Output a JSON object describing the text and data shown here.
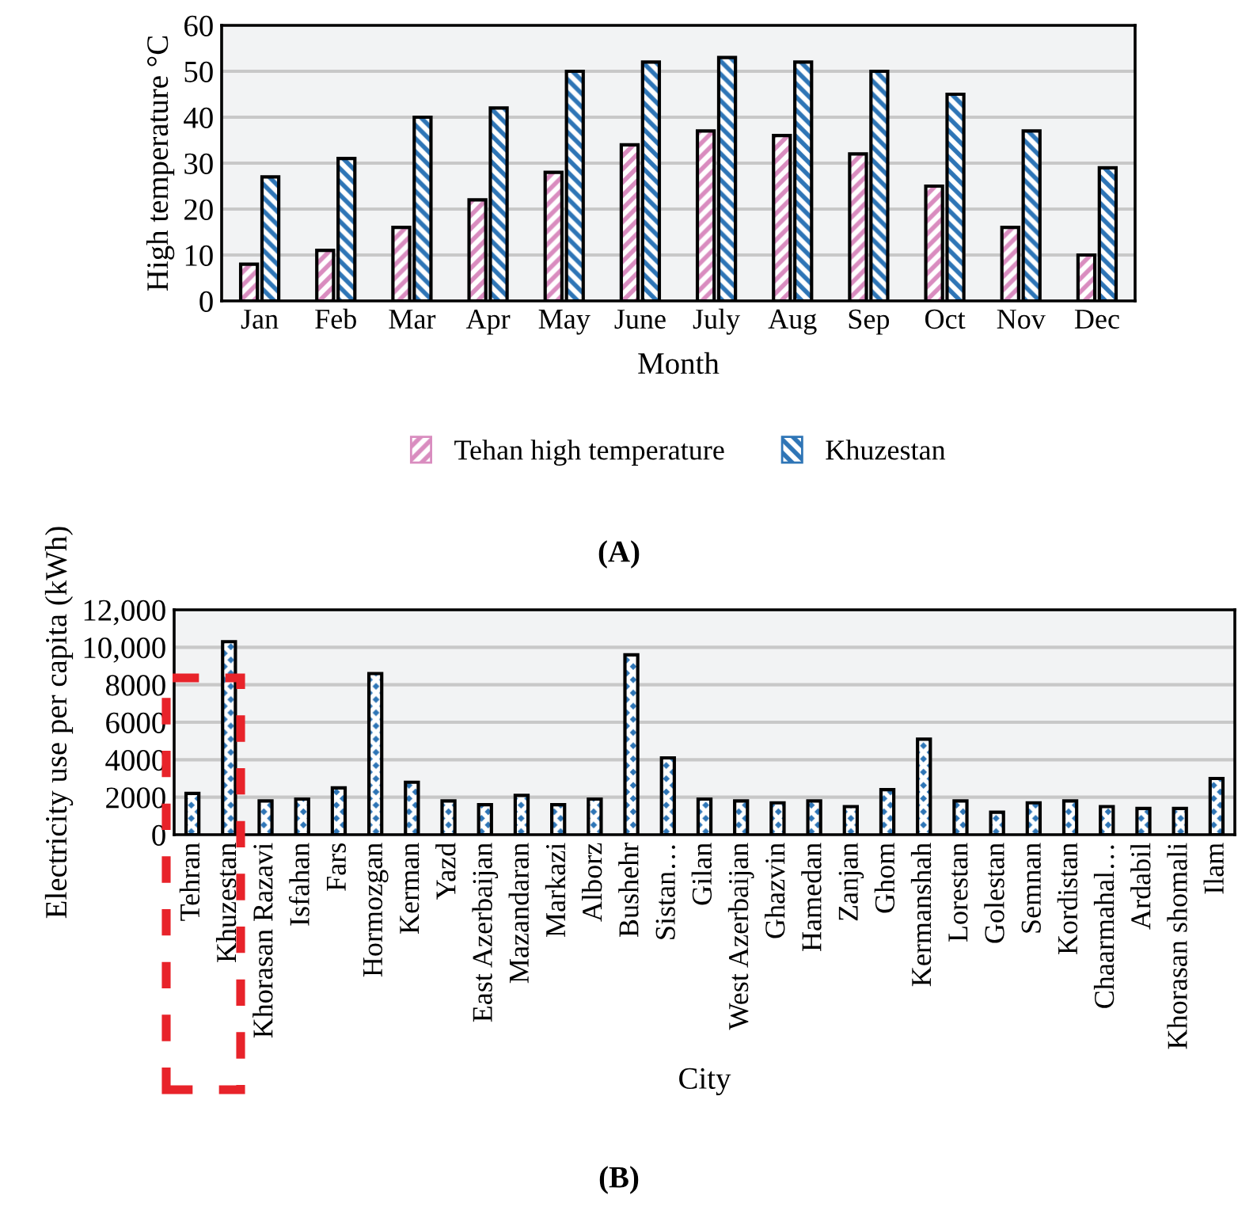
{
  "chart_data": [
    {
      "type": "bar",
      "xlabel": "Month",
      "ylabel": "High temperature °C",
      "categories": [
        "Jan",
        "Feb",
        "Mar",
        "Apr",
        "May",
        "June",
        "July",
        "Aug",
        "Sep",
        "Oct",
        "Nov",
        "Dec"
      ],
      "series": [
        {
          "name": "Tehan high temperature",
          "color": "#d98cbf",
          "values": [
            8,
            11,
            16,
            22,
            28,
            34,
            37,
            36,
            32,
            25,
            16,
            10
          ]
        },
        {
          "name": "Khuzestan",
          "color": "#2e75b6",
          "values": [
            27,
            31,
            40,
            42,
            50,
            52,
            53,
            52,
            50,
            45,
            37,
            29
          ]
        }
      ],
      "ylim": [
        0,
        60
      ],
      "yticks": [
        0,
        10,
        20,
        30,
        40,
        50,
        60
      ],
      "grid": "y",
      "legend": "bottom",
      "annotations": [
        "(A)"
      ]
    },
    {
      "type": "bar",
      "xlabel": "City",
      "ylabel": "Electricity use per capita (kWh)",
      "categories": [
        "Tehran",
        "Khuzestan",
        "Khorasan Razavi",
        "Isfahan",
        "Fars",
        "Hormozgan",
        "Kerman",
        "Yazd",
        "East Azerbaijan",
        "Mazandaran",
        "Markazi",
        "Alborz",
        "Bushehr",
        "Sistan…",
        "Gilan",
        "West Azerbaijan",
        "Ghazvin",
        "Hamedan",
        "Zanjan",
        "Ghom",
        "Kermanshah",
        "Lorestan",
        "Golestan",
        "Semnan",
        "Kordistan",
        "Chaarmahal…",
        "Ardabil",
        "Khorasan shomali",
        "Ilam"
      ],
      "series": [
        {
          "color": "#2e75b6",
          "values": [
            2200,
            10300,
            1800,
            1900,
            2500,
            8600,
            2800,
            1800,
            1600,
            2100,
            1600,
            1900,
            9600,
            4100,
            1900,
            1800,
            1700,
            1800,
            1500,
            2400,
            5100,
            1800,
            1200,
            1700,
            1800,
            1500,
            1400,
            1400,
            3000
          ]
        }
      ],
      "ylim": [
        0,
        12000
      ],
      "yticks": [
        0,
        {
          "value": 2000,
          "label": "2000"
        },
        {
          "value": 4000,
          "label": "4000"
        },
        {
          "value": 6000,
          "label": "6000"
        },
        {
          "value": 8000,
          "label": "8000"
        },
        {
          "value": 10000,
          "label": "10,000"
        },
        {
          "value": 12000,
          "label": "12,000"
        }
      ],
      "grid": "y",
      "annotations": [
        "(B)"
      ]
    }
  ]
}
